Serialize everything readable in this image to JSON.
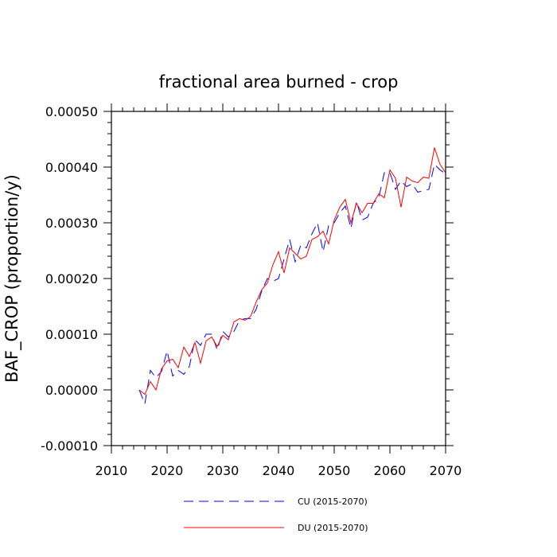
{
  "chart_data": {
    "type": "line",
    "title": "fractional area burned - crop",
    "xlabel": "",
    "ylabel": "BAF_CROP  (proportion/y)",
    "xlim": [
      2010,
      2070
    ],
    "ylim": [
      -0.0001,
      0.0005
    ],
    "x_ticks": [
      2010,
      2020,
      2030,
      2040,
      2050,
      2060,
      2070
    ],
    "x_tick_labels": [
      "2010",
      "2020",
      "2030",
      "2040",
      "2050",
      "2060",
      "2070"
    ],
    "y_ticks": [
      -0.0001,
      0.0,
      0.0001,
      0.0002,
      0.0003,
      0.0004,
      0.0005
    ],
    "y_tick_labels": [
      "-0.00010",
      "0.00000",
      "0.00010",
      "0.00020",
      "0.00030",
      "0.00040",
      "0.00050"
    ],
    "legend_position": "bottom-center",
    "x": [
      2015,
      2016,
      2017,
      2018,
      2019,
      2020,
      2021,
      2022,
      2023,
      2024,
      2025,
      2026,
      2027,
      2028,
      2029,
      2030,
      2031,
      2032,
      2033,
      2034,
      2035,
      2036,
      2037,
      2038,
      2039,
      2040,
      2041,
      2042,
      2043,
      2044,
      2045,
      2046,
      2047,
      2048,
      2049,
      2050,
      2051,
      2052,
      2053,
      2054,
      2055,
      2056,
      2057,
      2058,
      2059,
      2060,
      2061,
      2062,
      2063,
      2064,
      2065,
      2066,
      2067,
      2068,
      2069,
      2070
    ],
    "series": [
      {
        "name": "CU (2015-2070)",
        "color": "#0000ff",
        "style": "dashed",
        "values": [
          0.0,
          -2.5e-05,
          3.5e-05,
          2.2e-05,
          3.3e-05,
          7e-05,
          2.5e-05,
          3.5e-05,
          2.8e-05,
          4.2e-05,
          9e-05,
          8e-05,
          0.0001,
          0.0001,
          7.2e-05,
          0.000105,
          9.5e-05,
          0.000105,
          0.000125,
          0.000128,
          0.000128,
          0.000145,
          0.000178,
          0.0002,
          0.000195,
          0.0002,
          0.000235,
          0.00027,
          0.00023,
          0.00026,
          0.000255,
          0.00028,
          0.0003,
          0.000248,
          0.000295,
          0.0003,
          0.000318,
          0.00033,
          0.00029,
          0.000338,
          0.000305,
          0.00031,
          0.000335,
          0.000345,
          0.00039,
          0.00039,
          0.00036,
          0.000375,
          0.000365,
          0.00037,
          0.000355,
          0.000358,
          0.00036,
          0.000405,
          0.000395,
          0.000388
        ]
      },
      {
        "name": "DU (2015-2070)",
        "color": "#ff0000",
        "style": "solid",
        "values": [
          0.0,
          -8e-06,
          1.5e-05,
          0.0,
          3.8e-05,
          5.2e-05,
          5.5e-05,
          4e-05,
          7.7e-05,
          6e-05,
          8.5e-05,
          4.8e-05,
          8.8e-05,
          9.5e-05,
          7.8e-05,
          9.8e-05,
          9e-05,
          0.000122,
          0.000128,
          0.000125,
          0.000132,
          0.000158,
          0.00018,
          0.000192,
          0.000225,
          0.000248,
          0.00021,
          0.000255,
          0.000245,
          0.000235,
          0.00024,
          0.00027,
          0.000275,
          0.000285,
          0.000262,
          0.000305,
          0.000328,
          0.000342,
          0.0003,
          0.000335,
          0.000318,
          0.000335,
          0.000335,
          0.000352,
          0.000345,
          0.000395,
          0.00038,
          0.000328,
          0.000382,
          0.000375,
          0.000372,
          0.000382,
          0.00038,
          0.000435,
          0.000405,
          0.00039
        ]
      }
    ]
  }
}
